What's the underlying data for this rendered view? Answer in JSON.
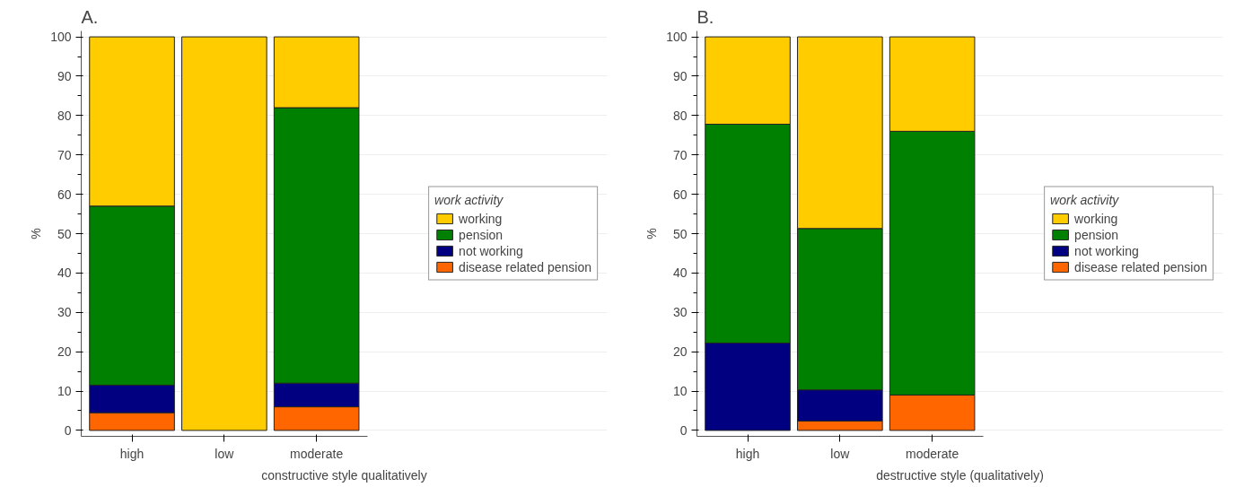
{
  "chart_data": [
    {
      "type": "bar",
      "title": "A.",
      "xlabel": "constructive style qualitatively",
      "ylabel": "%",
      "legend_title": "work activity",
      "categories": [
        "high",
        "low",
        "moderate"
      ],
      "stacked": true,
      "ylim": [
        -1.5,
        101.5
      ],
      "yticks": [
        0,
        10,
        20,
        30,
        40,
        50,
        60,
        70,
        80,
        90,
        100
      ],
      "grid": "y",
      "legend": "right",
      "series": [
        {
          "name": "disease related pension",
          "color": "#ff6600",
          "values": [
            4.5,
            0,
            6
          ]
        },
        {
          "name": "not working",
          "color": "#000080",
          "values": [
            7,
            0,
            6
          ]
        },
        {
          "name": "pension",
          "color": "#008000",
          "values": [
            45.5,
            0,
            70
          ]
        },
        {
          "name": "working",
          "color": "#ffcc00",
          "values": [
            43,
            100,
            18
          ]
        }
      ]
    },
    {
      "type": "bar",
      "title": "B.",
      "xlabel": "destructive style (qualitatively)",
      "ylabel": "%",
      "legend_title": "work activity",
      "categories": [
        "high",
        "low",
        "moderate"
      ],
      "stacked": true,
      "ylim": [
        -1.5,
        101.5
      ],
      "yticks": [
        0,
        10,
        20,
        30,
        40,
        50,
        60,
        70,
        80,
        90,
        100
      ],
      "grid": "y",
      "legend": "right",
      "series": [
        {
          "name": "disease related pension",
          "color": "#ff6600",
          "values": [
            0,
            2.4,
            9
          ]
        },
        {
          "name": "not working",
          "color": "#000080",
          "values": [
            22.2,
            7.9,
            0
          ]
        },
        {
          "name": "pension",
          "color": "#008000",
          "values": [
            55.6,
            41,
            67
          ]
        },
        {
          "name": "working",
          "color": "#ffcc00",
          "values": [
            22.2,
            48.7,
            24
          ]
        }
      ]
    }
  ]
}
